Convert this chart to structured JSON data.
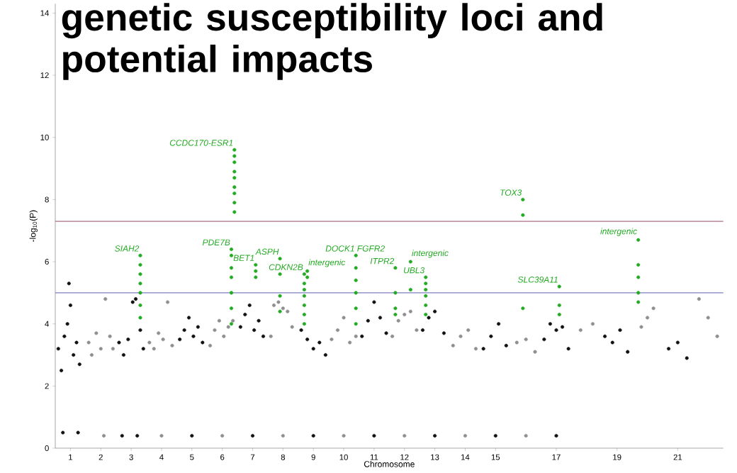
{
  "chart_data": {
    "type": "scatter",
    "title": "genetic susceptibility loci and potential impacts",
    "xlabel": "Chromosome",
    "ylabel": "-log$_{10}$(P)",
    "xlim": [
      0.5,
      22.5
    ],
    "ylim": [
      0,
      14.3
    ],
    "xticks": [
      1,
      2,
      3,
      4,
      5,
      6,
      7,
      8,
      9,
      10,
      11,
      12,
      13,
      14,
      15,
      17,
      19,
      21
    ],
    "yticks": [
      0,
      2,
      4,
      6,
      8,
      10,
      12,
      14
    ],
    "grid": false,
    "ref_lines": [
      {
        "axis": "y",
        "value": 7.3,
        "color": "#b07080"
      },
      {
        "axis": "y",
        "value": 5,
        "color": "#7f7fbf"
      }
    ],
    "series": [
      {
        "color": "#111111",
        "x": [
          0.6,
          0.7,
          0.8,
          0.9,
          0.95,
          1.0,
          1.1,
          1.2,
          1.3,
          0.75,
          1.25,
          2.6,
          2.75,
          2.9,
          3.05,
          3.15,
          3.3,
          3.4,
          2.7,
          3.2,
          4.6,
          4.75,
          4.9,
          5.05,
          5.2,
          5.35,
          5.0,
          6.6,
          6.75,
          6.9,
          7.05,
          7.2,
          7.35,
          7.0,
          8.6,
          8.8,
          9.0,
          9.2,
          9.4,
          9.0,
          10.6,
          10.8,
          11.0,
          11.2,
          11.4,
          11.0,
          12.6,
          12.8,
          13.0,
          13.3,
          13.0,
          14.6,
          14.85,
          15.1,
          15.35,
          15.0,
          16.6,
          16.8,
          17.0,
          17.2,
          17.4,
          17.0,
          18.6,
          18.85,
          19.1,
          19.35,
          20.7,
          21.0,
          21.3
        ],
        "values": [
          3.2,
          2.5,
          3.6,
          4.0,
          5.3,
          4.6,
          3.0,
          3.4,
          2.7,
          0.5,
          0.5,
          3.4,
          3.0,
          3.5,
          4.7,
          4.8,
          3.8,
          3.2,
          0.4,
          0.4,
          3.5,
          3.8,
          4.2,
          3.6,
          3.9,
          3.4,
          0.4,
          3.9,
          4.3,
          4.6,
          3.8,
          4.1,
          3.6,
          0.4,
          3.8,
          3.5,
          3.2,
          3.4,
          3.0,
          0.4,
          3.6,
          4.1,
          4.7,
          4.2,
          3.7,
          0.4,
          3.8,
          4.2,
          4.4,
          3.7,
          0.4,
          3.2,
          3.6,
          4.0,
          3.3,
          0.4,
          3.5,
          4.0,
          3.8,
          3.9,
          3.2,
          0.4,
          3.6,
          3.4,
          3.8,
          3.1,
          3.2,
          3.4,
          2.9
        ]
      },
      {
        "color": "#8f8f8f",
        "x": [
          1.6,
          1.7,
          1.85,
          2.0,
          2.15,
          2.3,
          2.4,
          2.1,
          3.6,
          3.75,
          3.9,
          4.05,
          4.2,
          4.35,
          4.0,
          5.6,
          5.75,
          5.9,
          6.05,
          6.2,
          6.35,
          6.0,
          7.6,
          7.7,
          7.85,
          8.0,
          8.15,
          8.3,
          8.0,
          9.6,
          9.8,
          10.0,
          10.2,
          10.4,
          10.0,
          11.6,
          11.8,
          12.0,
          12.2,
          12.4,
          12.0,
          13.6,
          13.85,
          14.1,
          14.35,
          14.0,
          15.7,
          16.0,
          16.3,
          16.0,
          17.8,
          18.2,
          19.8,
          20.0,
          20.2,
          21.7,
          22.0,
          22.3
        ],
        "values": [
          3.4,
          3.0,
          3.7,
          3.2,
          4.8,
          3.6,
          3.2,
          0.4,
          3.4,
          3.2,
          3.7,
          3.5,
          4.7,
          3.3,
          0.4,
          3.3,
          3.8,
          4.1,
          3.6,
          3.9,
          4.1,
          0.4,
          3.6,
          4.6,
          4.7,
          4.5,
          4.4,
          3.9,
          0.4,
          3.5,
          3.8,
          4.2,
          3.4,
          3.6,
          0.4,
          3.6,
          4.1,
          4.3,
          4.4,
          3.8,
          0.4,
          3.3,
          3.6,
          3.8,
          3.2,
          0.4,
          3.4,
          3.5,
          3.1,
          0.4,
          3.8,
          4.0,
          3.9,
          4.2,
          4.5,
          4.8,
          4.2,
          3.6
        ]
      },
      {
        "color": "#22aa22",
        "x": [
          3.3,
          3.3,
          3.3,
          3.3,
          3.3,
          3.3,
          3.3,
          6.4,
          6.4,
          6.4,
          6.4,
          6.4,
          6.4,
          6.4,
          6.4,
          6.4,
          6.3,
          6.3,
          6.3,
          6.3,
          6.3,
          6.3,
          6.3,
          7.1,
          7.1,
          7.1,
          7.9,
          7.9,
          7.9,
          7.9,
          8.7,
          8.7,
          8.7,
          8.7,
          8.7,
          8.7,
          8.7,
          8.8,
          8.8,
          10.4,
          10.4,
          10.4,
          10.4,
          10.4,
          10.4,
          11.7,
          11.7,
          11.7,
          11.7,
          12.2,
          12.2,
          12.7,
          12.7,
          12.7,
          12.7,
          12.7,
          12.7,
          15.9,
          15.9,
          15.9,
          17.1,
          17.1,
          17.1,
          19.7,
          19.7,
          19.7,
          19.7,
          19.7
        ],
        "values": [
          4.2,
          4.6,
          5.0,
          5.3,
          5.6,
          5.9,
          6.2,
          9.6,
          9.4,
          9.2,
          8.9,
          8.7,
          8.4,
          8.2,
          7.9,
          7.6,
          6.4,
          6.2,
          5.8,
          5.5,
          5.0,
          4.5,
          4.0,
          5.9,
          5.7,
          5.5,
          6.1,
          5.6,
          4.9,
          4.4,
          5.6,
          5.3,
          5.1,
          4.9,
          4.6,
          4.3,
          4.0,
          5.7,
          5.5,
          6.2,
          5.8,
          5.4,
          5.0,
          4.5,
          4.0,
          5.8,
          5.0,
          4.5,
          4.3,
          6.0,
          5.1,
          5.5,
          5.3,
          5.1,
          4.9,
          4.6,
          4.3,
          8.0,
          7.5,
          4.5,
          5.2,
          4.6,
          4.3,
          6.7,
          5.9,
          5.5,
          5.0,
          4.7
        ]
      }
    ],
    "annotations": [
      {
        "text": "CCDC170-ESR1",
        "x": 6.4,
        "y": 9.6
      },
      {
        "text": "TOX3",
        "x": 15.9,
        "y": 8.0
      },
      {
        "text": "SIAH2",
        "x": 3.3,
        "y": 6.2
      },
      {
        "text": "PDE7B",
        "x": 6.3,
        "y": 6.4
      },
      {
        "text": "BET1",
        "x": 7.1,
        "y": 5.9
      },
      {
        "text": "ASPH",
        "x": 7.9,
        "y": 6.1
      },
      {
        "text": "CDKN2B",
        "x": 8.7,
        "y": 5.6
      },
      {
        "text": "intergenic",
        "x": 8.8,
        "y": 5.7
      },
      {
        "text": "DOCK1",
        "x": 10.4,
        "y": 6.2
      },
      {
        "text": "FGFR2",
        "x": 10.4,
        "y": 6.2
      },
      {
        "text": "ITPR2",
        "x": 11.7,
        "y": 5.8
      },
      {
        "text": "intergenic",
        "x": 12.2,
        "y": 6.0
      },
      {
        "text": "UBL3",
        "x": 12.7,
        "y": 5.5
      },
      {
        "text": "SLC39A11",
        "x": 17.1,
        "y": 5.2
      },
      {
        "text": "intergenic",
        "x": 19.7,
        "y": 6.7
      }
    ]
  }
}
